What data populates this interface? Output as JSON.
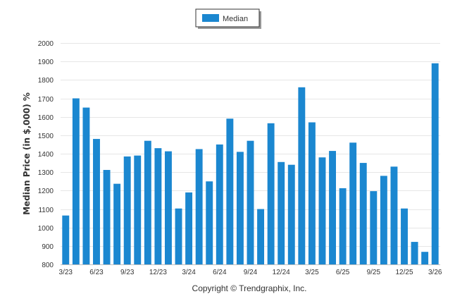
{
  "chart_data": {
    "type": "bar",
    "title": "",
    "xlabel": "",
    "ylabel": "Median Price (in $,000) %",
    "ylim": [
      800,
      2000
    ],
    "yticks": [
      800,
      900,
      1000,
      1100,
      1200,
      1300,
      1400,
      1500,
      1600,
      1700,
      1800,
      1900,
      2000
    ],
    "grid": true,
    "legend_position": "top-center",
    "bar_color": "#1b87d0",
    "categories": [
      "3/23",
      "4/23",
      "5/23",
      "6/23",
      "7/23",
      "8/23",
      "9/23",
      "10/23",
      "11/23",
      "12/23",
      "1/24",
      "2/24",
      "3/24",
      "4/24",
      "5/24",
      "6/24",
      "7/24",
      "8/24",
      "9/24",
      "10/24",
      "11/24",
      "12/24",
      "1/25",
      "2/25",
      "3/25",
      "4/25",
      "5/25",
      "6/25",
      "7/25",
      "8/25",
      "9/25",
      "10/25",
      "11/25",
      "12/25",
      "1/26",
      "2/26",
      "3/26"
    ],
    "tick_labels": [
      "3/23",
      "",
      "",
      "6/23",
      "",
      "",
      "9/23",
      "",
      "",
      "12/23",
      "",
      "",
      "3/24",
      "",
      "",
      "6/24",
      "",
      "",
      "9/24",
      "",
      "",
      "12/24",
      "",
      "",
      "3/25",
      "",
      "",
      "6/25",
      "",
      "",
      "9/25",
      "",
      "",
      "12/25",
      "",
      "",
      "3/26"
    ],
    "series": [
      {
        "name": "Median",
        "values": [
          1065,
          1700,
          1650,
          1480,
          1312,
          1237,
          1385,
          1390,
          1470,
          1430,
          1413,
          1103,
          1190,
          1425,
          1250,
          1450,
          1590,
          1410,
          1470,
          1100,
          1565,
          1355,
          1340,
          1760,
          1570,
          1380,
          1415,
          1213,
          1460,
          1350,
          1197,
          1280,
          1330,
          1103,
          922,
          868,
          1890
        ]
      }
    ]
  },
  "copyright": "Copyright © Trendgraphix, Inc."
}
